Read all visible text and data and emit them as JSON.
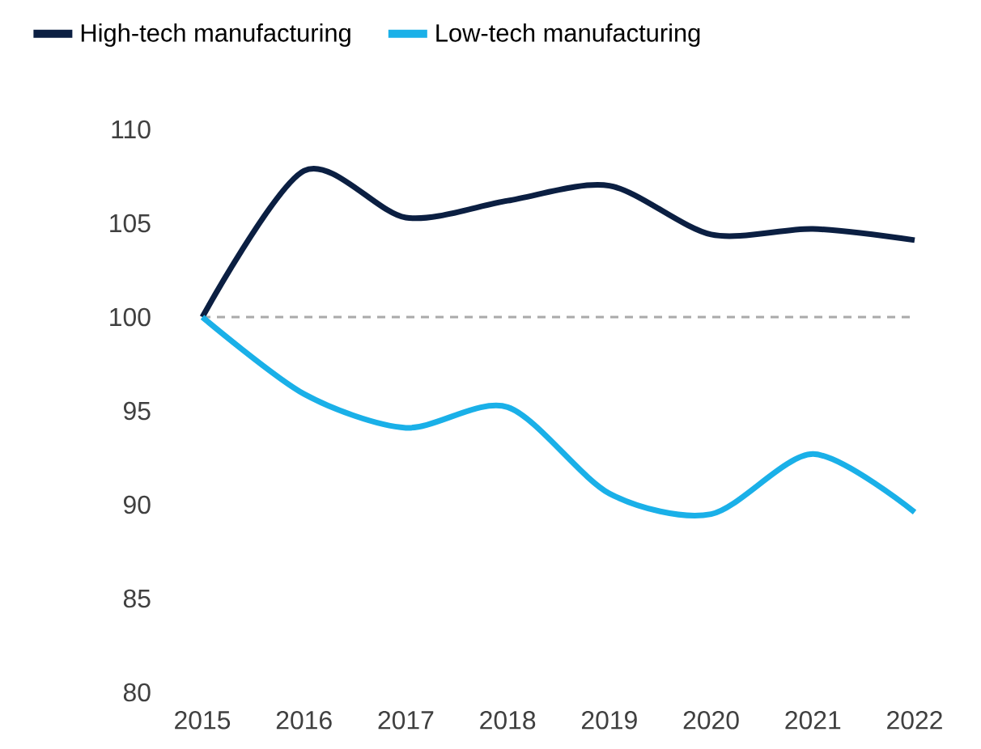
{
  "chart_data": {
    "type": "line",
    "x": [
      2015,
      2016,
      2017,
      2018,
      2019,
      2020,
      2021,
      2022
    ],
    "series": [
      {
        "name": "High-tech manufacturing",
        "color": "#0b1f42",
        "values": [
          100,
          107.8,
          105.3,
          106.2,
          107,
          104.4,
          104.7,
          104.1
        ]
      },
      {
        "name": "Low-tech manufacturing",
        "color": "#1ab0e8",
        "values": [
          100,
          95.9,
          94.1,
          95.2,
          90.6,
          89.5,
          92.7,
          89.6
        ]
      }
    ],
    "xlim": [
      2015,
      2022
    ],
    "xticks": [
      2015,
      2016,
      2017,
      2018,
      2019,
      2020,
      2021,
      2022
    ],
    "ylim": [
      80,
      110
    ],
    "yticks": [
      80,
      85,
      90,
      95,
      100,
      105,
      110
    ],
    "ref_lines": [
      {
        "axis": "y",
        "value": 100,
        "color": "#aaaaaa",
        "line_style": "dashed"
      }
    ],
    "grid": false,
    "legend": "top left",
    "marker": "none",
    "line_style": "solid"
  }
}
